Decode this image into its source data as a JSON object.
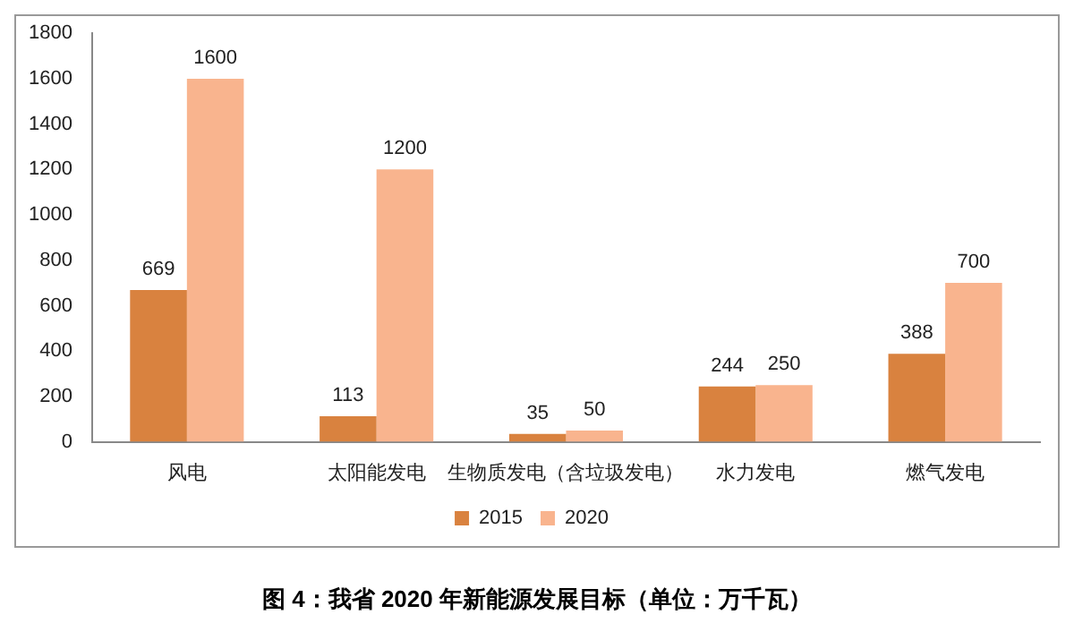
{
  "chart_data": {
    "type": "bar",
    "title": "图 4：我省 2020 年新能源发展目标（单位：万千瓦）",
    "categories": [
      "风电",
      "太阳能发电",
      "生物质发电（含垃圾发电）",
      "水力发电",
      "燃气发电"
    ],
    "series": [
      {
        "name": "2015",
        "color": "#d9823f",
        "values": [
          669,
          113,
          35,
          244,
          388
        ]
      },
      {
        "name": "2020",
        "color": "#f9b48e",
        "values": [
          1600,
          1200,
          50,
          250,
          700
        ]
      }
    ],
    "ylim": [
      0,
      1800
    ],
    "yticks": [
      0,
      200,
      400,
      600,
      800,
      1000,
      1200,
      1400,
      1600,
      1800
    ],
    "grid": false,
    "legend": "bottom",
    "data_labels": true
  }
}
